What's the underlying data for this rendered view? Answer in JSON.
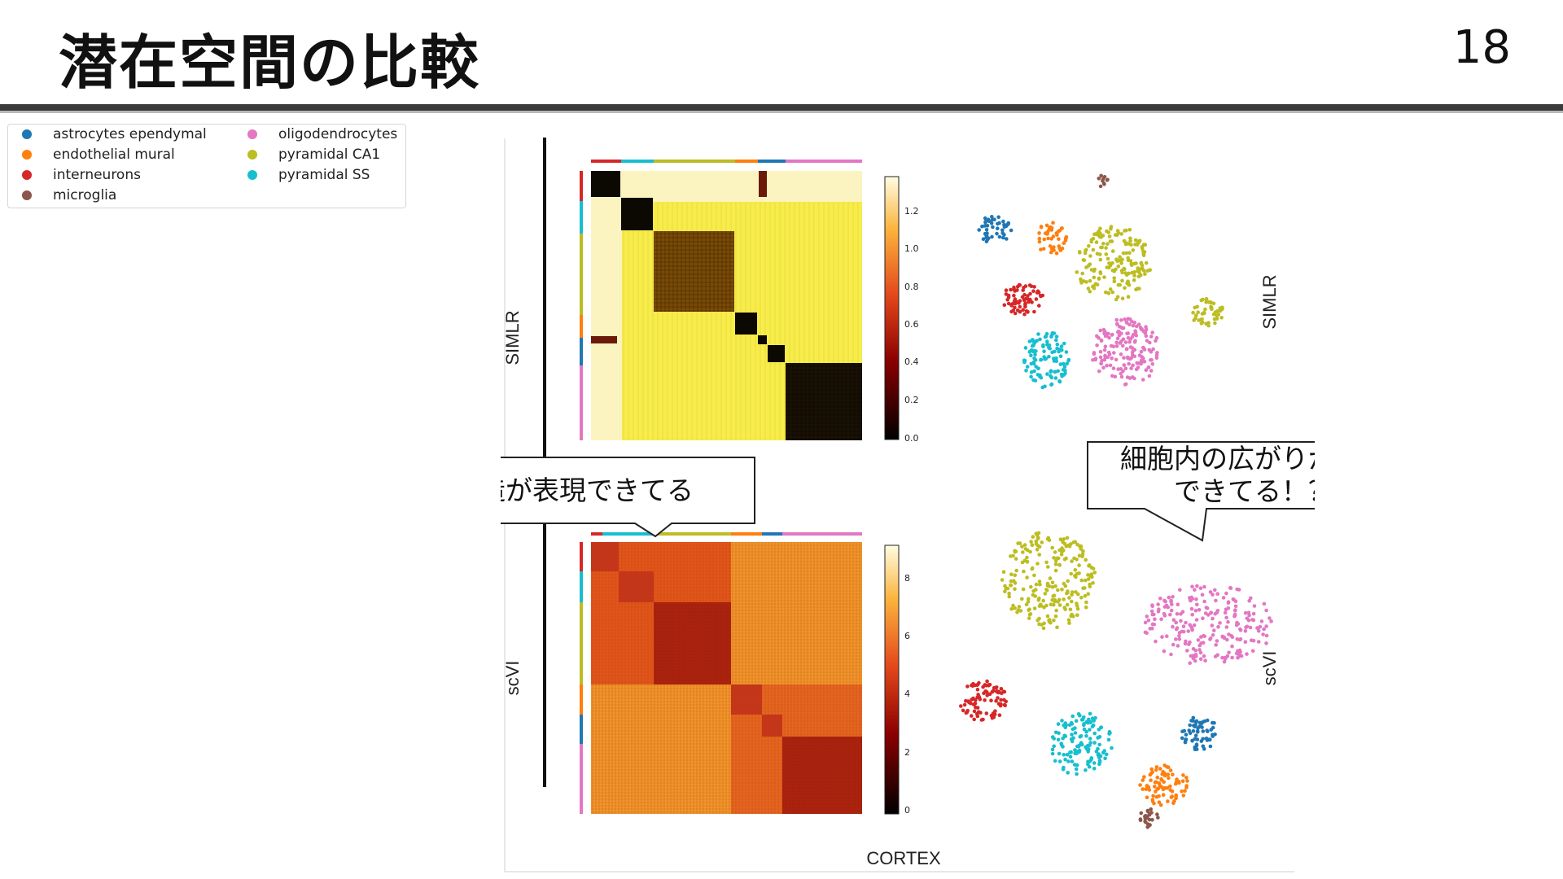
{
  "slide": {
    "title": "潜在空間の比較",
    "page_number": "18"
  },
  "legend": {
    "items": [
      {
        "label": "astrocytes ependymal",
        "color": "#1f77b4"
      },
      {
        "label": "endothelial mural",
        "color": "#ff7f0e"
      },
      {
        "label": "interneurons",
        "color": "#d62728"
      },
      {
        "label": "microglia",
        "color": "#8c564b"
      },
      {
        "label": "oligodendrocytes",
        "color": "#e377c2"
      },
      {
        "label": "pyramidal CA1",
        "color": "#bcbd22"
      },
      {
        "label": "pyramidal SS",
        "color": "#17becf"
      }
    ]
  },
  "figure": {
    "row_labels": {
      "top": "SIMLR",
      "bottom": "scVI"
    },
    "bottom_label": "CORTEX",
    "simlr_colorbar_ticks": [
      "1.2",
      "1.0",
      "0.8",
      "0.6",
      "0.4",
      "0.2",
      "0.0"
    ],
    "scvi_colorbar_ticks": [
      "8",
      "6",
      "4",
      "2",
      "0"
    ]
  },
  "callouts": {
    "left": "細胞間の階層構造が表現できてる",
    "right_line1": "細胞内の広がりが表現",
    "right_line2": "できてる！？"
  }
}
